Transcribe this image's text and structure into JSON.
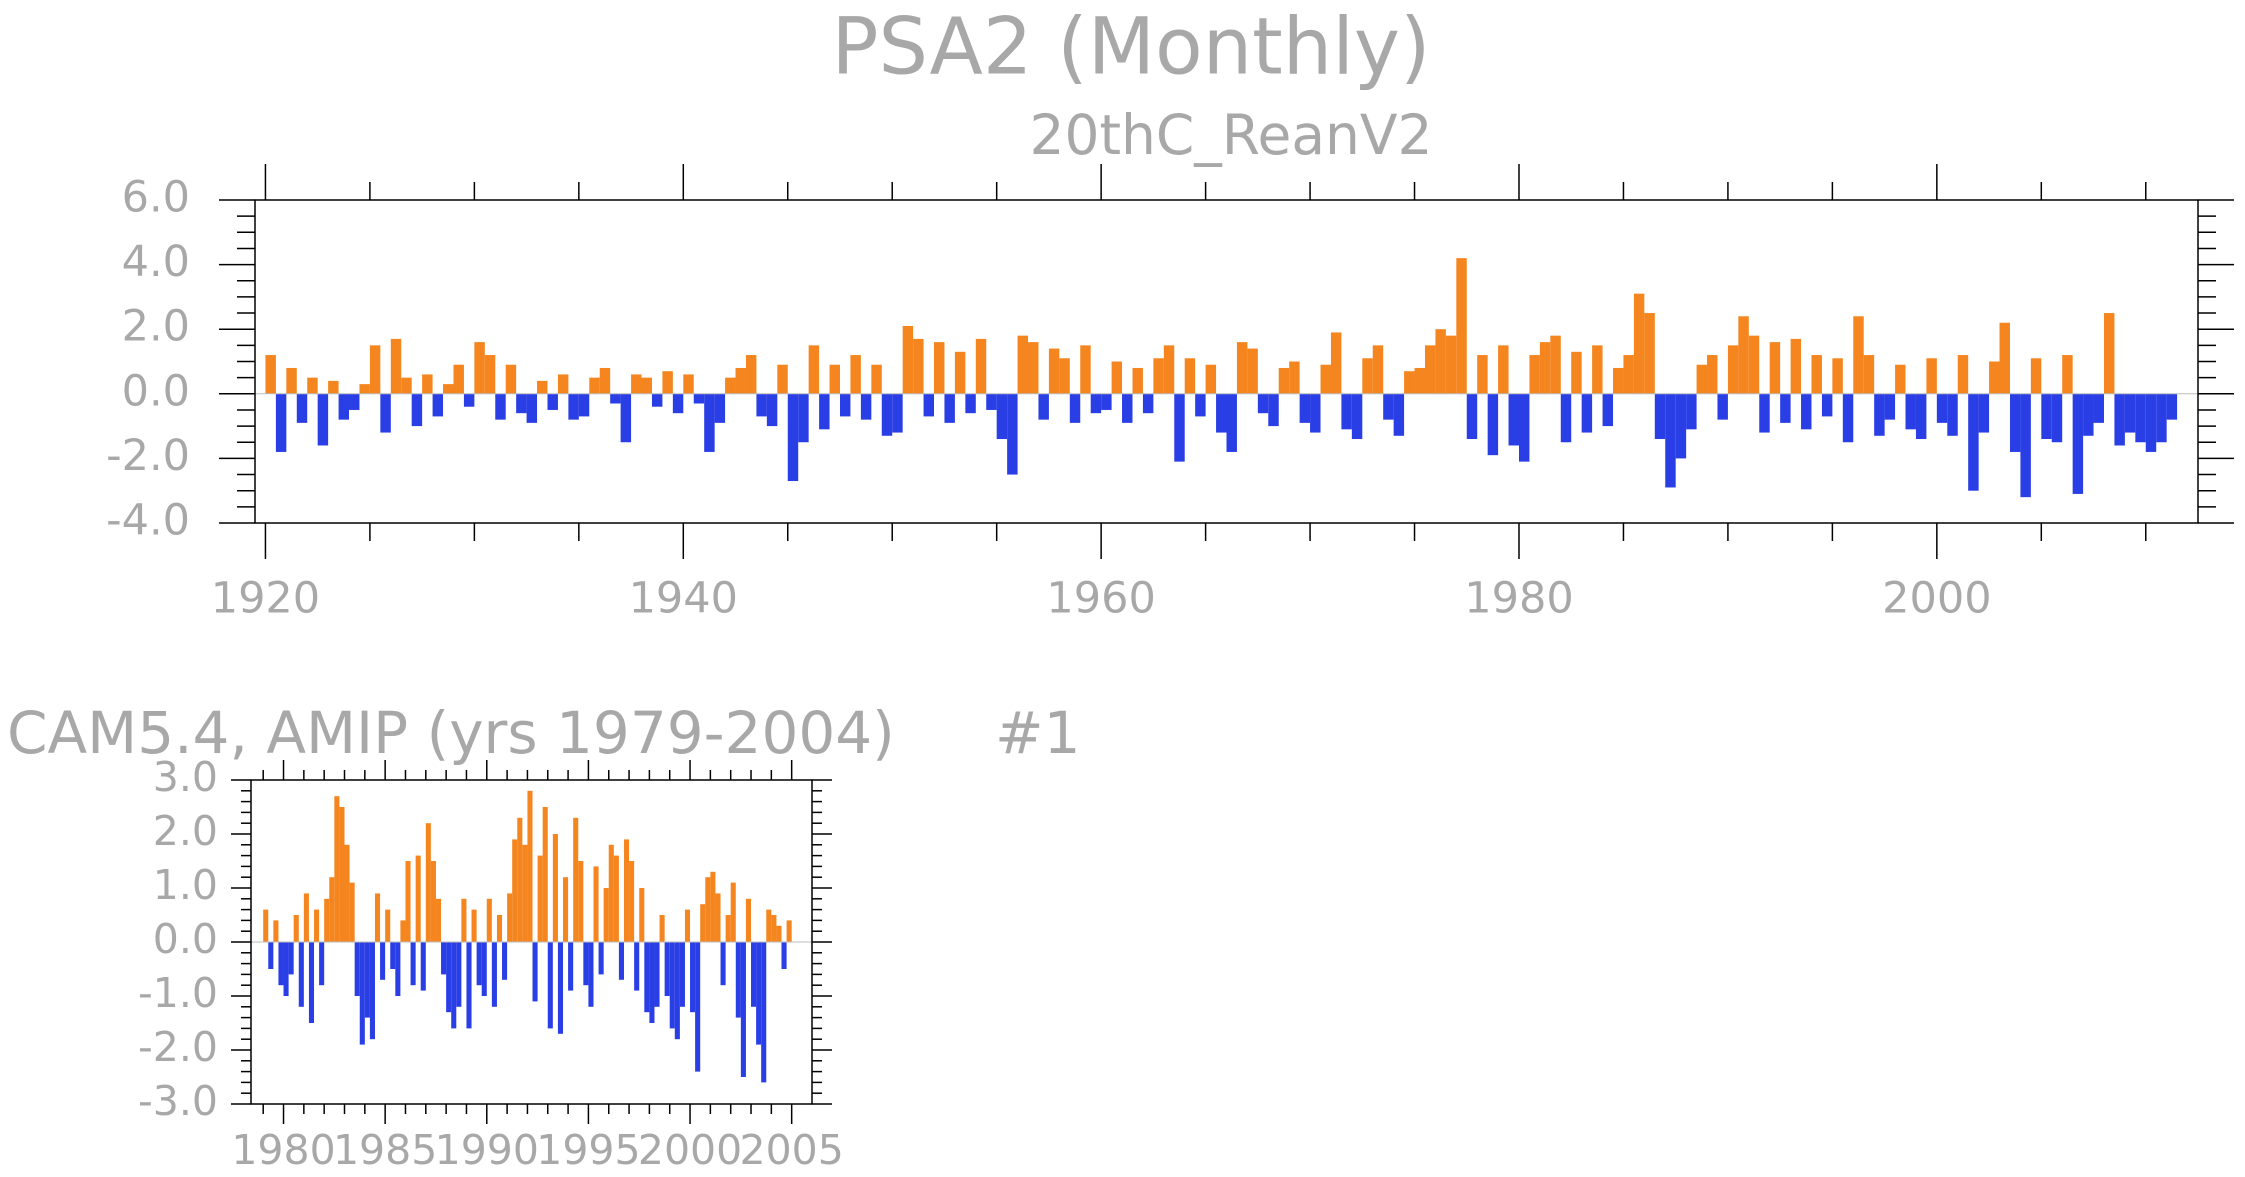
{
  "title": "PSA2 (Monthly)",
  "chart_data": [
    {
      "type": "bar",
      "title": "20thC_ReanV2",
      "positive_color": "#f5851f",
      "negative_color": "#2a3ee6",
      "xlim": [
        1919.5,
        2012.5
      ],
      "ylim": [
        -4,
        6
      ],
      "xticks": [
        1920,
        1940,
        1960,
        1980,
        2000
      ],
      "xminorticks": [
        1925,
        1930,
        1935,
        1945,
        1950,
        1955,
        1965,
        1970,
        1975,
        1985,
        1990,
        1995,
        2005,
        2010
      ],
      "yticks": [
        {
          "value": -4,
          "label": "-4.0"
        },
        {
          "value": -2,
          "label": "-2.0"
        },
        {
          "value": 0,
          "label": "0.0"
        },
        {
          "value": 2,
          "label": "2.0"
        },
        {
          "value": 4,
          "label": "4.0"
        },
        {
          "value": 6,
          "label": "6.0"
        }
      ],
      "yminorticks": [
        -3.5,
        -3,
        -2.5,
        -1.5,
        -1,
        -0.5,
        0.5,
        1,
        1.5,
        2.5,
        3,
        3.5,
        4.5,
        5,
        5.5
      ],
      "x": [
        1920,
        1920.5,
        1921,
        1921.5,
        1922,
        1922.5,
        1923,
        1923.5,
        1924,
        1924.5,
        1925,
        1925.5,
        1926,
        1926.5,
        1927,
        1927.5,
        1928,
        1928.5,
        1929,
        1929.5,
        1930,
        1930.5,
        1931,
        1931.5,
        1932,
        1932.5,
        1933,
        1933.5,
        1934,
        1934.5,
        1935,
        1935.5,
        1936,
        1936.5,
        1937,
        1937.5,
        1938,
        1938.5,
        1939,
        1939.5,
        1940,
        1940.5,
        1941,
        1941.5,
        1942,
        1942.5,
        1943,
        1943.5,
        1944,
        1944.5,
        1945,
        1945.5,
        1946,
        1946.5,
        1947,
        1947.5,
        1948,
        1948.5,
        1949,
        1949.5,
        1950,
        1950.5,
        1951,
        1951.5,
        1952,
        1952.5,
        1953,
        1953.5,
        1954,
        1954.5,
        1955,
        1955.5,
        1956,
        1956.5,
        1957,
        1957.5,
        1958,
        1958.5,
        1959,
        1959.5,
        1960,
        1960.5,
        1961,
        1961.5,
        1962,
        1962.5,
        1963,
        1963.5,
        1964,
        1964.5,
        1965,
        1965.5,
        1966,
        1966.5,
        1967,
        1967.5,
        1968,
        1968.5,
        1969,
        1969.5,
        1970,
        1970.5,
        1971,
        1971.5,
        1972,
        1972.5,
        1973,
        1973.5,
        1974,
        1974.5,
        1975,
        1975.5,
        1976,
        1976.5,
        1977,
        1977.5,
        1978,
        1978.5,
        1979,
        1979.5,
        1980,
        1980.5,
        1981,
        1981.5,
        1982,
        1982.5,
        1983,
        1983.5,
        1984,
        1984.5,
        1985,
        1985.5,
        1986,
        1986.5,
        1987,
        1987.5,
        1988,
        1988.5,
        1989,
        1989.5,
        1990,
        1990.5,
        1991,
        1991.5,
        1992,
        1992.5,
        1993,
        1993.5,
        1994,
        1994.5,
        1995,
        1995.5,
        1996,
        1996.5,
        1997,
        1997.5,
        1998,
        1998.5,
        1999,
        1999.5,
        2000,
        2000.5,
        2001,
        2001.5,
        2002,
        2002.5,
        2003,
        2003.5,
        2004,
        2004.5,
        2005,
        2005.5,
        2006,
        2006.5,
        2007,
        2007.5,
        2008,
        2008.5,
        2009,
        2009.5,
        2010,
        2010.5,
        2011
      ],
      "values": [
        1.2,
        -1.8,
        0.8,
        -0.9,
        0.5,
        -1.6,
        0.4,
        -0.8,
        -0.5,
        0.3,
        1.5,
        -1.2,
        1.7,
        0.5,
        -1.0,
        0.6,
        -0.7,
        0.3,
        0.9,
        -0.4,
        1.6,
        1.2,
        -0.8,
        0.9,
        -0.6,
        -0.9,
        0.4,
        -0.5,
        0.6,
        -0.8,
        -0.7,
        0.5,
        0.8,
        -0.3,
        -1.5,
        0.6,
        0.5,
        -0.4,
        0.7,
        -0.6,
        0.6,
        -0.3,
        -1.8,
        -0.9,
        0.5,
        0.8,
        1.2,
        -0.7,
        -1.0,
        0.9,
        -2.7,
        -1.5,
        1.5,
        -1.1,
        0.9,
        -0.7,
        1.2,
        -0.8,
        0.9,
        -1.3,
        -1.2,
        2.1,
        1.7,
        -0.7,
        1.6,
        -0.9,
        1.3,
        -0.6,
        1.7,
        -0.5,
        -1.4,
        -2.5,
        1.8,
        1.6,
        -0.8,
        1.4,
        1.1,
        -0.9,
        1.5,
        -0.6,
        -0.5,
        1.0,
        -0.9,
        0.8,
        -0.6,
        1.1,
        1.5,
        -2.1,
        1.1,
        -0.7,
        0.9,
        -1.2,
        -1.8,
        1.6,
        1.4,
        -0.6,
        -1.0,
        0.8,
        1.0,
        -0.9,
        -1.2,
        0.9,
        1.9,
        -1.1,
        -1.4,
        1.1,
        1.5,
        -0.8,
        -1.3,
        0.7,
        0.8,
        1.5,
        2.0,
        1.8,
        4.2,
        -1.4,
        1.2,
        -1.9,
        1.5,
        -1.6,
        -2.1,
        1.2,
        1.6,
        1.8,
        -1.5,
        1.3,
        -1.2,
        1.5,
        -1.0,
        0.8,
        1.2,
        3.1,
        2.5,
        -1.4,
        -2.9,
        -2.0,
        -1.1,
        0.9,
        1.2,
        -0.8,
        1.5,
        2.4,
        1.8,
        -1.2,
        1.6,
        -0.9,
        1.7,
        -1.1,
        1.2,
        -0.7,
        1.1,
        -1.5,
        2.4,
        1.2,
        -1.3,
        -0.8,
        0.9,
        -1.1,
        -1.4,
        1.1,
        -0.9,
        -1.3,
        1.2,
        -3.0,
        -1.2,
        1.0,
        2.2,
        -1.8,
        -3.2,
        1.1,
        -1.4,
        -1.5,
        1.2,
        -3.1,
        -1.3,
        -0.9,
        2.5,
        -1.6,
        -1.2,
        -1.5,
        -1.8,
        -1.5,
        -0.8
      ]
    },
    {
      "type": "bar",
      "title": "CAM5.4, AMIP (yrs 1979-2004)",
      "annotation": "#1",
      "positive_color": "#f5851f",
      "negative_color": "#2a3ee6",
      "xlim": [
        1978.4,
        2006
      ],
      "ylim": [
        -3,
        3
      ],
      "xticks": [
        1980,
        1985,
        1990,
        1995,
        2000,
        2005
      ],
      "xminorticks": [
        1979,
        1981,
        1982,
        1983,
        1984,
        1986,
        1987,
        1988,
        1989,
        1991,
        1992,
        1993,
        1994,
        1996,
        1997,
        1998,
        1999,
        2001,
        2002,
        2003,
        2004
      ],
      "yticks": [
        {
          "value": -3,
          "label": "-3.0"
        },
        {
          "value": -2,
          "label": "-2.0"
        },
        {
          "value": -1,
          "label": "-1.0"
        },
        {
          "value": 0,
          "label": "0.0"
        },
        {
          "value": 1,
          "label": "1.0"
        },
        {
          "value": 2,
          "label": "2.0"
        },
        {
          "value": 3,
          "label": "3.0"
        }
      ],
      "yminorticks": [
        -2.8,
        -2.6,
        -2.4,
        -2.2,
        -1.8,
        -1.6,
        -1.4,
        -1.2,
        -0.8,
        -0.6,
        -0.4,
        -0.2,
        0.2,
        0.4,
        0.6,
        0.8,
        1.2,
        1.4,
        1.6,
        1.8,
        2.2,
        2.4,
        2.6,
        2.8
      ],
      "x": [
        1979,
        1979.25,
        1979.5,
        1979.75,
        1980,
        1980.25,
        1980.5,
        1980.75,
        1981,
        1981.25,
        1981.5,
        1981.75,
        1982,
        1982.25,
        1982.5,
        1982.75,
        1983,
        1983.25,
        1983.5,
        1983.75,
        1984,
        1984.25,
        1984.5,
        1984.75,
        1985,
        1985.25,
        1985.5,
        1985.75,
        1986,
        1986.25,
        1986.5,
        1986.75,
        1987,
        1987.25,
        1987.5,
        1987.75,
        1988,
        1988.25,
        1988.5,
        1988.75,
        1989,
        1989.25,
        1989.5,
        1989.75,
        1990,
        1990.25,
        1990.5,
        1990.75,
        1991,
        1991.25,
        1991.5,
        1991.75,
        1992,
        1992.25,
        1992.5,
        1992.75,
        1993,
        1993.25,
        1993.5,
        1993.75,
        1994,
        1994.25,
        1994.5,
        1994.75,
        1995,
        1995.25,
        1995.5,
        1995.75,
        1996,
        1996.25,
        1996.5,
        1996.75,
        1997,
        1997.25,
        1997.5,
        1997.75,
        1998,
        1998.25,
        1998.5,
        1998.75,
        1999,
        1999.25,
        1999.5,
        1999.75,
        2000,
        2000.25,
        2000.5,
        2000.75,
        2001,
        2001.25,
        2001.5,
        2001.75,
        2002,
        2002.25,
        2002.5,
        2002.75,
        2003,
        2003.25,
        2003.5,
        2003.75,
        2004,
        2004.25,
        2004.5,
        2004.75
      ],
      "values": [
        0.6,
        -0.5,
        0.4,
        -0.8,
        -1.0,
        -0.6,
        0.5,
        -1.2,
        0.9,
        -1.5,
        0.6,
        -0.8,
        0.8,
        1.2,
        2.7,
        2.5,
        1.8,
        1.1,
        -1.0,
        -1.9,
        -1.4,
        -1.8,
        0.9,
        -0.7,
        0.6,
        -0.5,
        -1.0,
        0.4,
        1.5,
        -0.8,
        1.6,
        -0.9,
        2.2,
        1.5,
        0.8,
        -0.6,
        -1.3,
        -1.6,
        -1.2,
        0.8,
        -1.6,
        0.6,
        -0.8,
        -1.0,
        0.8,
        -1.2,
        0.5,
        -0.7,
        0.9,
        1.9,
        2.3,
        1.8,
        2.8,
        -1.1,
        1.6,
        2.5,
        -1.6,
        2.0,
        -1.7,
        1.2,
        -0.9,
        2.3,
        1.5,
        -0.8,
        -1.2,
        1.4,
        -0.6,
        1.0,
        1.8,
        1.6,
        -0.7,
        1.9,
        1.5,
        -0.9,
        1.0,
        -1.3,
        -1.5,
        -1.2,
        0.5,
        -1.0,
        -1.6,
        -1.8,
        -1.2,
        0.6,
        -1.3,
        -2.4,
        0.7,
        1.2,
        1.3,
        0.9,
        -0.8,
        0.5,
        1.1,
        -1.4,
        -2.5,
        0.8,
        -1.2,
        -1.9,
        -2.6,
        0.6,
        0.5,
        0.3,
        -0.5,
        0.4
      ]
    }
  ]
}
